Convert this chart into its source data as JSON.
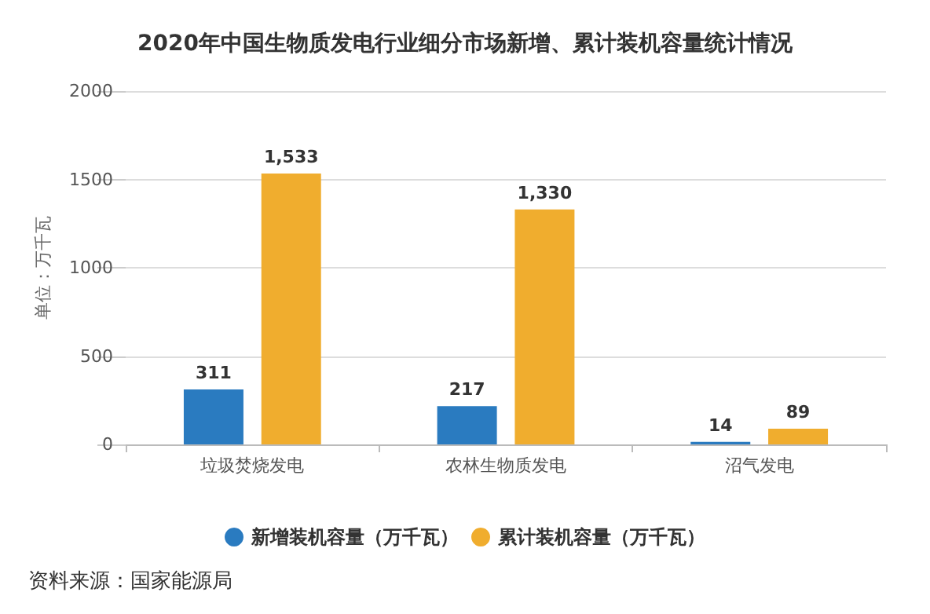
{
  "chart_data": {
    "type": "bar",
    "title": "2020年中国生物质发电行业细分市场新增、累计装机容量统计情况",
    "ylabel": "单位：万千瓦",
    "categories": [
      "垃圾焚烧发电",
      "农林生物质发电",
      "沼气发电"
    ],
    "series": [
      {
        "name": "新增装机容量（万千瓦）",
        "color": "#2a7bc0",
        "values": [
          311,
          217,
          14
        ],
        "value_labels": [
          "311",
          "217",
          "14"
        ]
      },
      {
        "name": "累计装机容量（万千瓦）",
        "color": "#f0ad2e",
        "values": [
          1533,
          1330,
          89
        ],
        "value_labels": [
          "1,533",
          "1,330",
          "89"
        ]
      }
    ],
    "ylim": [
      0,
      2000
    ],
    "yticks": [
      0,
      500,
      1000,
      1500,
      2000
    ],
    "grid": "y",
    "legend": "bottom",
    "annotations": [
      "资料来源：国家能源局"
    ]
  }
}
